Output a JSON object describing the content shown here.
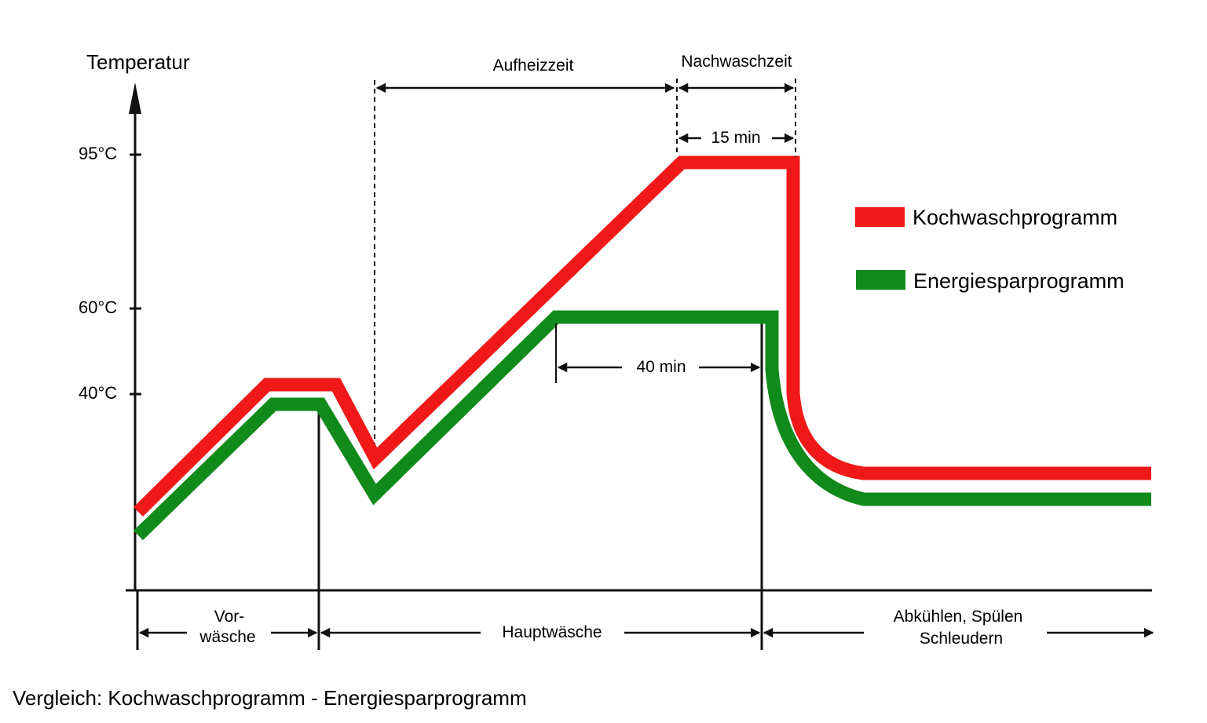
{
  "y_axis_title": "Temperatur",
  "y_ticks": [
    "95°C",
    "60°C",
    "40°C"
  ],
  "dimensions": {
    "aufheizzeit": "Aufheizzeit",
    "nachwaschzeit": "Nachwaschzeit",
    "nachwasch_duration": "15 min",
    "energiespar_hold": "40 min"
  },
  "phases": {
    "vorwaesche_line1": "Vor-",
    "vorwaesche_line2": "wäsche",
    "hauptwaesche": "Hauptwäsche",
    "abkuehlen_line1": "Abkühlen, Spülen",
    "abkuehlen_line2": "Schleudern"
  },
  "legend": [
    {
      "label": "Kochwaschprogramm",
      "color": "#f01818"
    },
    {
      "label": "Energiesparprogramm",
      "color": "#118a1c"
    }
  ],
  "caption": "Vergleich: Kochwaschprogramm - Energiesparprogramm"
}
